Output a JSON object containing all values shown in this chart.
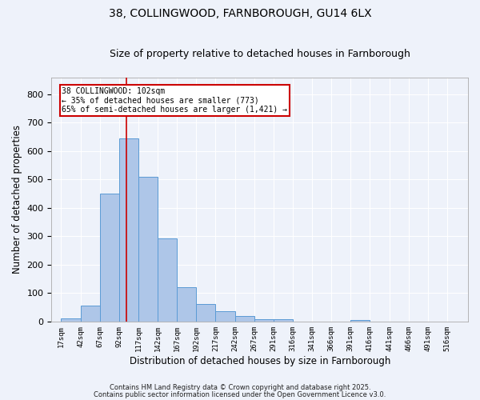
{
  "title1": "38, COLLINGWOOD, FARNBOROUGH, GU14 6LX",
  "title2": "Size of property relative to detached houses in Farnborough",
  "xlabel": "Distribution of detached houses by size in Farnborough",
  "ylabel": "Number of detached properties",
  "bar_labels": [
    "17sqm",
    "42sqm",
    "67sqm",
    "92sqm",
    "117sqm",
    "142sqm",
    "167sqm",
    "192sqm",
    "217sqm",
    "242sqm",
    "267sqm",
    "291sqm",
    "316sqm",
    "341sqm",
    "366sqm",
    "391sqm",
    "416sqm",
    "441sqm",
    "466sqm",
    "491sqm",
    "516sqm"
  ],
  "bar_values": [
    10,
    57,
    450,
    645,
    510,
    293,
    120,
    62,
    35,
    20,
    8,
    8,
    0,
    0,
    0,
    5,
    0,
    0,
    0,
    0,
    0
  ],
  "bar_color": "#aec6e8",
  "bar_edgecolor": "#5b9bd5",
  "vline_x": 102,
  "ylim": [
    0,
    860
  ],
  "yticks": [
    0,
    100,
    200,
    300,
    400,
    500,
    600,
    700,
    800
  ],
  "annotation_text": "38 COLLINGWOOD: 102sqm\n← 35% of detached houses are smaller (773)\n65% of semi-detached houses are larger (1,421) →",
  "annotation_box_color": "#ffffff",
  "annotation_border_color": "#cc0000",
  "vline_color": "#cc0000",
  "footer1": "Contains HM Land Registry data © Crown copyright and database right 2025.",
  "footer2": "Contains public sector information licensed under the Open Government Licence v3.0.",
  "background_color": "#eef2fa",
  "grid_color": "#ffffff",
  "title_fontsize": 10,
  "subtitle_fontsize": 9
}
